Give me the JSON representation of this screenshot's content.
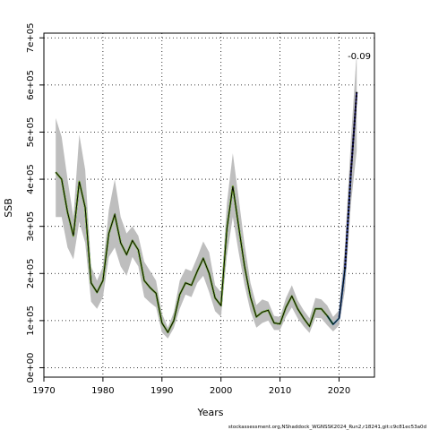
{
  "footer": "stockassessment.org,NShaddock_WGNSSK2024_Run2,r18241,git:c9c81ec53a0d",
  "chart_data": {
    "type": "line",
    "title": "",
    "xlabel": "Years",
    "ylabel": "SSB",
    "xlim": [
      1970,
      2026
    ],
    "ylim": [
      -20000,
      710000
    ],
    "x_ticks": [
      1970,
      1980,
      1990,
      2000,
      2010,
      2020
    ],
    "x_tick_labels": [
      "1970",
      "1980",
      "1990",
      "2000",
      "2010",
      "2020"
    ],
    "y_ticks": [
      0,
      100000,
      200000,
      300000,
      400000,
      500000,
      600000,
      700000
    ],
    "y_tick_labels": [
      "0e+00",
      "1e+05",
      "2e+05",
      "3e+05",
      "4e+05",
      "5e+05",
      "6e+05",
      "7e+05"
    ],
    "grid": "dotted",
    "rho_label": "-0.09",
    "years": [
      1972,
      1973,
      1974,
      1975,
      1976,
      1977,
      1978,
      1979,
      1980,
      1981,
      1982,
      1983,
      1984,
      1985,
      1986,
      1987,
      1988,
      1989,
      1990,
      1991,
      1992,
      1993,
      1994,
      1995,
      1996,
      1997,
      1998,
      1999,
      2000,
      2001,
      2002,
      2003,
      2004,
      2005,
      2006,
      2007,
      2008,
      2009,
      2010,
      2011,
      2012,
      2013,
      2014,
      2015,
      2016,
      2017,
      2018,
      2019,
      2020,
      2021,
      2022,
      2023
    ],
    "series": [
      {
        "color": "#000000",
        "values": [
          415000,
          400000,
          330000,
          280000,
          395000,
          340000,
          180000,
          160000,
          185000,
          285000,
          325000,
          265000,
          240000,
          270000,
          250000,
          185000,
          170000,
          158000,
          95000,
          75000,
          100000,
          155000,
          180000,
          175000,
          205000,
          232000,
          200000,
          148000,
          132000,
          295000,
          385000,
          300000,
          215000,
          150000,
          108000,
          118000,
          122000,
          95000,
          93000,
          128000,
          152000,
          125000,
          105000,
          88000,
          125000,
          125000,
          110000,
          92000,
          105000,
          210000,
          410000,
          585000
        ]
      }
    ],
    "retro_colors": [
      "#1f1a63",
      "#2c3a8c",
      "#3a6fb0",
      "#64b0e0",
      "#2a8c5a",
      "#9acd32"
    ],
    "band": {
      "color": "#bebebe",
      "upper": [
        530000,
        490000,
        400000,
        320000,
        495000,
        420000,
        215000,
        185000,
        215000,
        335000,
        400000,
        320000,
        285000,
        300000,
        280000,
        225000,
        205000,
        185000,
        115000,
        85000,
        118000,
        185000,
        210000,
        205000,
        235000,
        268000,
        245000,
        175000,
        160000,
        350000,
        455000,
        360000,
        262000,
        180000,
        133000,
        145000,
        140000,
        110000,
        108000,
        148000,
        175000,
        143000,
        122000,
        105000,
        148000,
        145000,
        132000,
        108000,
        122000,
        260000,
        480000,
        670000
      ],
      "lower": [
        320000,
        320000,
        255000,
        230000,
        310000,
        265000,
        140000,
        125000,
        150000,
        235000,
        255000,
        215000,
        195000,
        235000,
        215000,
        150000,
        138000,
        128000,
        75000,
        62000,
        84000,
        125000,
        155000,
        150000,
        180000,
        195000,
        160000,
        120000,
        108000,
        238000,
        320000,
        245000,
        175000,
        120000,
        85000,
        95000,
        100000,
        80000,
        80000,
        108000,
        128000,
        105000,
        88000,
        74000,
        106000,
        105000,
        90000,
        77000,
        90000,
        165000,
        345000,
        460000
      ]
    }
  }
}
